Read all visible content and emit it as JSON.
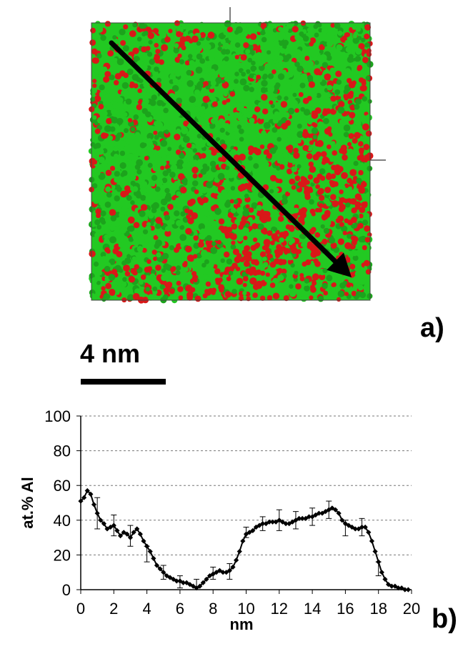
{
  "figure": {
    "panel_a_label": "a)",
    "panel_b_label": "b)",
    "scale_bar_label": "4 nm",
    "atom_colors": {
      "green": "#22c922",
      "red": "#d81818",
      "arrow": "#000000"
    }
  },
  "chart_data": {
    "type": "line",
    "title": "",
    "xlabel": "nm",
    "ylabel": "at.% Al",
    "xlim": [
      0,
      20
    ],
    "ylim": [
      0,
      100
    ],
    "xticks": [
      0,
      2,
      4,
      6,
      8,
      10,
      12,
      14,
      16,
      18,
      20
    ],
    "yticks": [
      0,
      20,
      40,
      60,
      80,
      100
    ],
    "grid": "horizontal dashed",
    "series": [
      {
        "marker": "diamond",
        "color": "#000000",
        "x": [
          0.0,
          0.2,
          0.4,
          0.6,
          0.8,
          1.0,
          1.2,
          1.4,
          1.6,
          1.8,
          2.0,
          2.2,
          2.4,
          2.6,
          2.8,
          3.0,
          3.2,
          3.4,
          3.6,
          3.8,
          4.0,
          4.2,
          4.4,
          4.6,
          4.8,
          5.0,
          5.2,
          5.4,
          5.6,
          5.8,
          6.0,
          6.2,
          6.4,
          6.6,
          6.8,
          7.0,
          7.2,
          7.4,
          7.6,
          7.8,
          8.0,
          8.2,
          8.4,
          8.6,
          8.8,
          9.0,
          9.2,
          9.4,
          9.6,
          9.8,
          10.0,
          10.2,
          10.4,
          10.6,
          10.8,
          11.0,
          11.2,
          11.4,
          11.6,
          11.8,
          12.0,
          12.2,
          12.4,
          12.6,
          12.8,
          13.0,
          13.2,
          13.4,
          13.6,
          13.8,
          14.0,
          14.2,
          14.4,
          14.6,
          14.8,
          15.0,
          15.2,
          15.4,
          15.6,
          15.8,
          16.0,
          16.2,
          16.4,
          16.6,
          16.8,
          17.0,
          17.2,
          17.4,
          17.6,
          17.8,
          18.0,
          18.2,
          18.4,
          18.6,
          18.8,
          19.0,
          19.2,
          19.4,
          19.6,
          19.8
        ],
        "values": [
          51,
          53,
          57,
          55,
          49,
          44,
          40,
          38,
          35,
          36,
          37,
          34,
          31,
          33,
          32,
          30,
          33,
          35,
          32,
          28,
          25,
          22,
          18,
          14,
          12,
          10,
          8,
          7,
          6,
          5,
          5,
          4,
          4,
          3,
          2,
          1,
          2,
          4,
          6,
          8,
          9,
          10,
          11,
          10,
          10,
          11,
          13,
          17,
          22,
          28,
          32,
          33,
          34,
          36,
          37,
          38,
          38,
          39,
          39,
          39,
          40,
          39,
          38,
          38,
          39,
          40,
          41,
          41,
          41,
          42,
          42,
          43,
          44,
          44,
          45,
          46,
          47,
          46,
          44,
          40,
          38,
          37,
          36,
          35,
          35,
          36,
          36,
          33,
          28,
          22,
          16,
          10,
          6,
          3,
          2,
          2,
          1,
          1,
          0,
          0
        ],
        "error_bars": [
          {
            "x": 1.0,
            "low": 35,
            "high": 53
          },
          {
            "x": 2.0,
            "low": 31,
            "high": 43
          },
          {
            "x": 3.0,
            "low": 25,
            "high": 37
          },
          {
            "x": 4.0,
            "low": 16,
            "high": 25
          },
          {
            "x": 5.0,
            "low": 6,
            "high": 14
          },
          {
            "x": 6.0,
            "low": 1,
            "high": 8
          },
          {
            "x": 7.0,
            "low": 0,
            "high": 6
          },
          {
            "x": 8.0,
            "low": 6,
            "high": 13
          },
          {
            "x": 9.0,
            "low": 6,
            "high": 15
          },
          {
            "x": 10.0,
            "low": 30,
            "high": 36
          },
          {
            "x": 11.0,
            "low": 34,
            "high": 42
          },
          {
            "x": 12.0,
            "low": 34,
            "high": 46
          },
          {
            "x": 13.0,
            "low": 35,
            "high": 45
          },
          {
            "x": 14.0,
            "low": 37,
            "high": 47
          },
          {
            "x": 15.0,
            "low": 41,
            "high": 51
          },
          {
            "x": 16.0,
            "low": 31,
            "high": 40
          },
          {
            "x": 17.0,
            "low": 31,
            "high": 41
          },
          {
            "x": 18.0,
            "low": 8,
            "high": 16
          }
        ]
      }
    ]
  }
}
